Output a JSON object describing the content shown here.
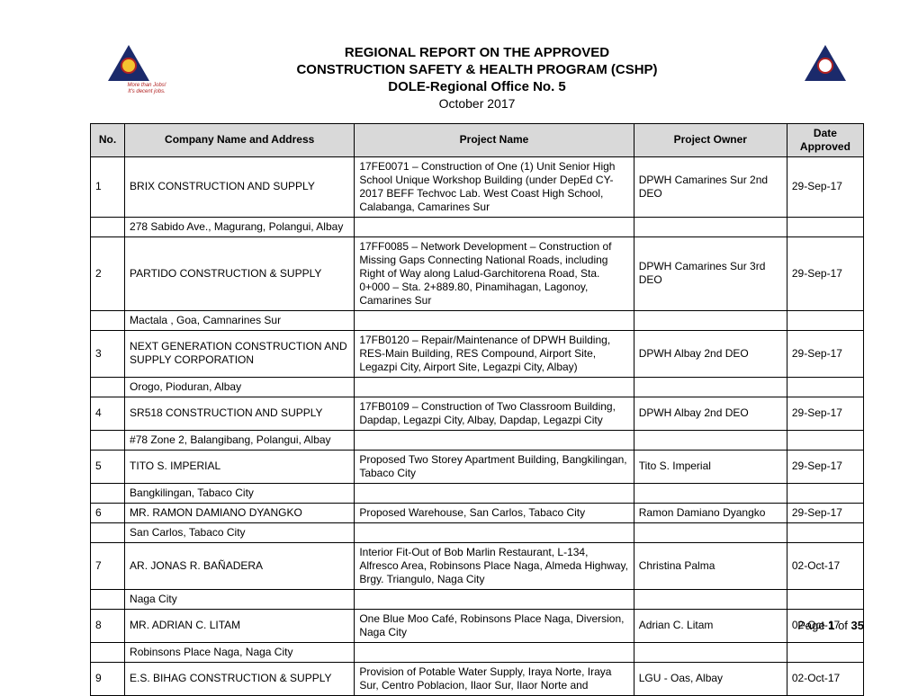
{
  "header": {
    "title_l1": "REGIONAL REPORT ON THE APPROVED",
    "title_l2": "CONSTRUCTION SAFETY & HEALTH PROGRAM (CSHP)",
    "title_l3": "DOLE-Regional Office No. 5",
    "subtitle": "October 2017",
    "slogan_l1": "More than Jobs!",
    "slogan_l2": "It's decent jobs."
  },
  "columns": {
    "no": "No.",
    "company": "Company Name and Address",
    "project": "Project Name",
    "owner": "Project Owner",
    "date": "Date Approved"
  },
  "rows": [
    {
      "no": "1",
      "company": "BRIX CONSTRUCTION AND SUPPLY",
      "project": "17FE0071 – Construction of One (1) Unit Senior High School Unique Workshop Building (under DepEd CY-2017 BEFF Techvoc Lab. West Coast High School, Calabanga, Camarines Sur",
      "owner": "DPWH Camarines Sur 2nd DEO",
      "date": "29-Sep-17",
      "address": "278 Sabido Ave., Magurang, Polangui, Albay"
    },
    {
      "no": "2",
      "company": "PARTIDO CONSTRUCTION & SUPPLY",
      "project": "17FF0085 – Network Development – Construction of Missing Gaps Connecting National Roads, including Right of Way along Lalud-Garchitorena Road, Sta. 0+000 – Sta. 2+889.80, Pinamihagan, Lagonoy, Camarines Sur",
      "owner": "DPWH Camarines Sur 3rd DEO",
      "date": "29-Sep-17",
      "address": "Mactala , Goa, Camnarines Sur"
    },
    {
      "no": "3",
      "company": "NEXT GENERATION CONSTRUCTION AND SUPPLY CORPORATION",
      "project": "17FB0120 – Repair/Maintenance of DPWH Building, RES-Main Building, RES Compound, Airport Site, Legazpi City, Airport Site, Legazpi City, Albay)",
      "owner": "DPWH Albay 2nd DEO",
      "date": "29-Sep-17",
      "address": "Orogo, Pioduran, Albay"
    },
    {
      "no": "4",
      "company": "SR518 CONSTRUCTION AND SUPPLY",
      "project": "17FB0109 – Construction of Two Classroom Building, Dapdap, Legazpi City, Albay, Dapdap, Legazpi City",
      "owner": "DPWH Albay 2nd DEO",
      "date": "29-Sep-17",
      "address": "#78 Zone 2, Balangibang, Polangui, Albay"
    },
    {
      "no": "5",
      "company": "TITO S. IMPERIAL",
      "project": "Proposed Two Storey Apartment Building, Bangkilingan, Tabaco City",
      "owner": "Tito S. Imperial",
      "date": "29-Sep-17",
      "address": "Bangkilingan, Tabaco City"
    },
    {
      "no": "6",
      "company": "MR. RAMON DAMIANO DYANGKO",
      "project": "Proposed Warehouse, San Carlos, Tabaco City",
      "owner": "Ramon Damiano Dyangko",
      "date": "29-Sep-17",
      "address": "San Carlos, Tabaco City"
    },
    {
      "no": "7",
      "company": "AR. JONAS R. BAÑADERA",
      "project": "Interior Fit-Out of Bob Marlin Restaurant, L-134, Alfresco Area, Robinsons Place Naga, Almeda Highway, Brgy. Triangulo, Naga City",
      "owner": "Christina Palma",
      "date": "02-Oct-17",
      "address": "Naga City"
    },
    {
      "no": "8",
      "company": "MR. ADRIAN C. LITAM",
      "project": "One Blue Moo Café, Robinsons Place Naga, Diversion, Naga City",
      "owner": "Adrian C. Litam",
      "date": "02-Oct-17",
      "address": "Robinsons Place Naga, Naga City"
    },
    {
      "no": "9",
      "company": "E.S. BIHAG CONSTRUCTION & SUPPLY",
      "project": "Provision of Potable Water Supply, Iraya Norte, Iraya Sur, Centro Poblacion, Ilaor Sur, Ilaor Norte and",
      "owner": "LGU - Oas, Albay",
      "date": "02-Oct-17",
      "address": ""
    }
  ],
  "footer": {
    "prefix": "Page ",
    "current": "1",
    "of": " of ",
    "total": "35"
  },
  "style": {
    "header_bg": "#d9d9d9",
    "border_color": "#000000",
    "font_size_body": 12,
    "font_size_title": 15
  }
}
